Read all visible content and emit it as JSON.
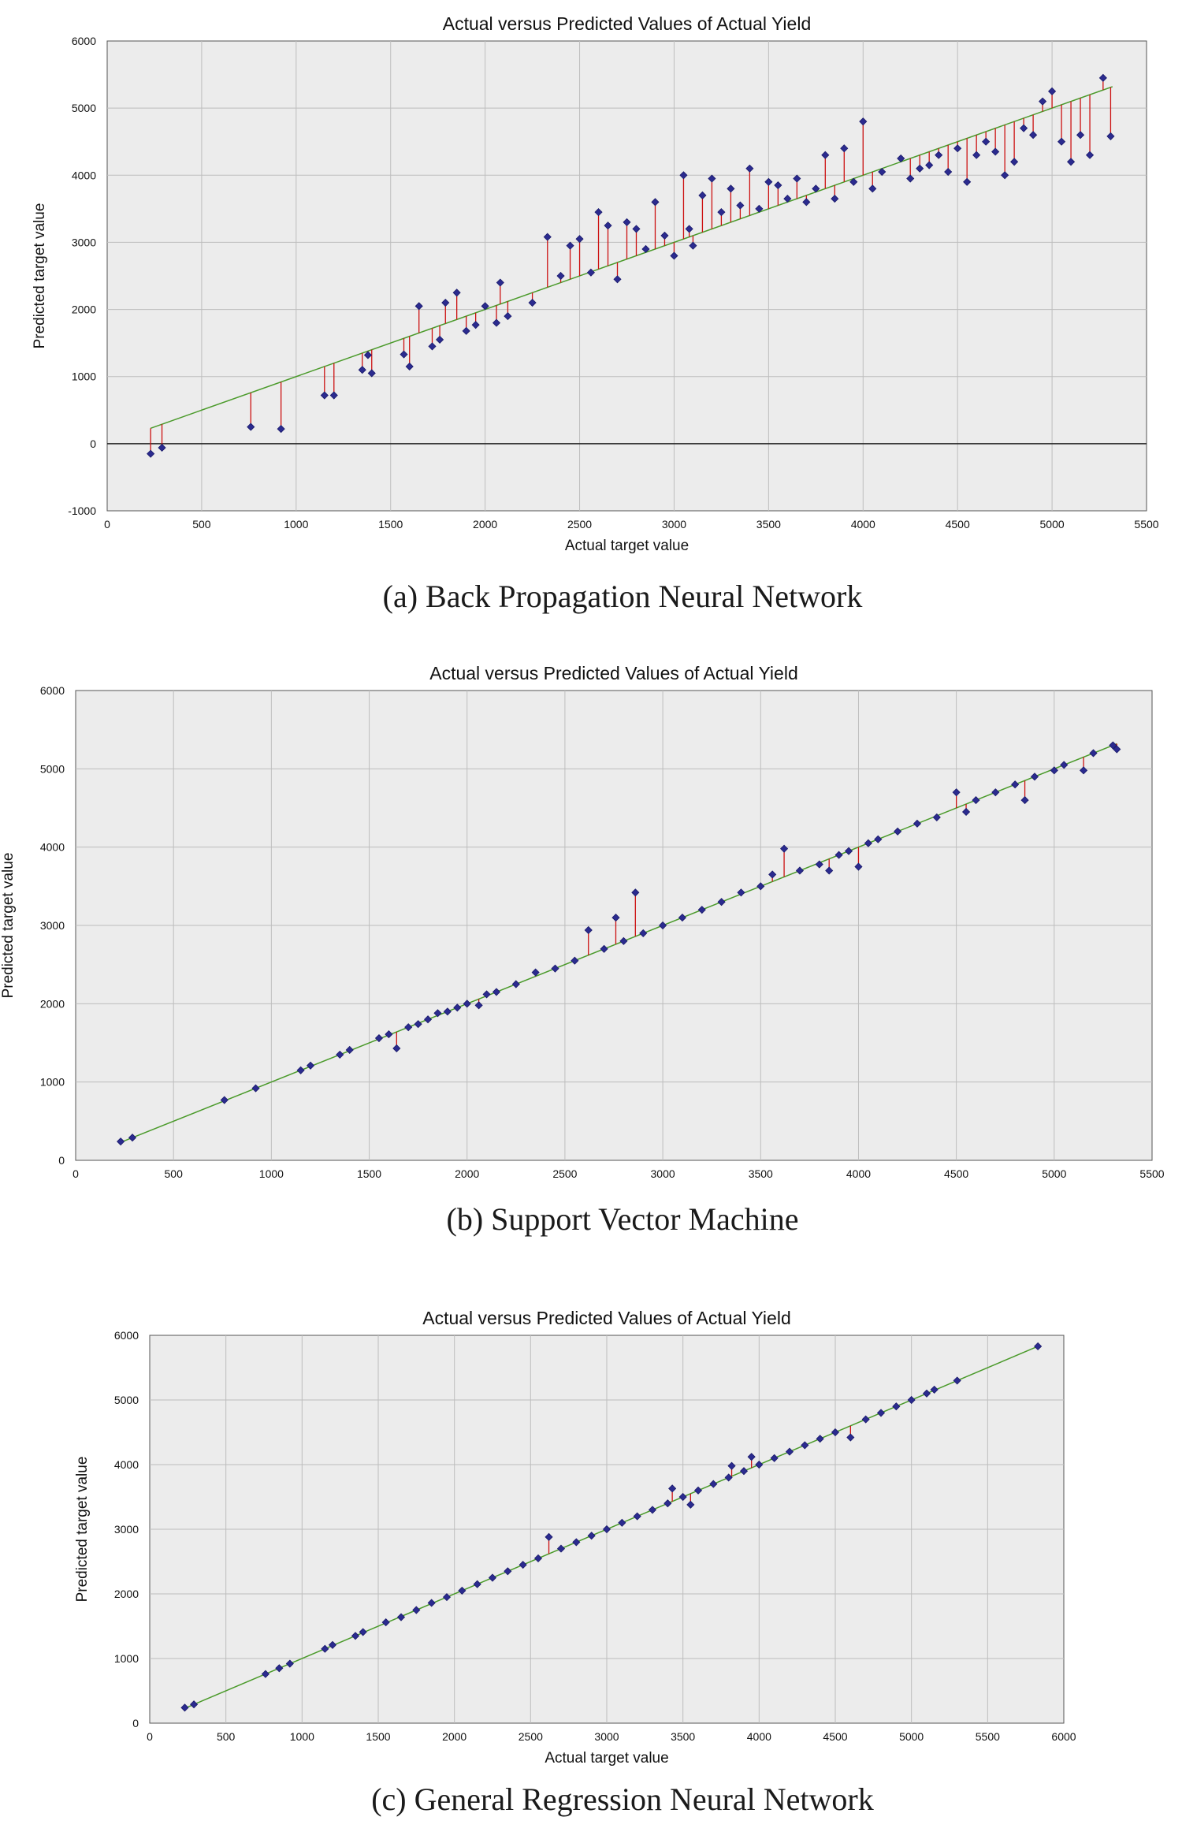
{
  "colors": {
    "plot_background": "#ececec",
    "grid": "#bdbdbd",
    "fit_line": "#4a9a2a",
    "residual": "#cc1111",
    "point": "#2b2b8f"
  },
  "chart_data": [
    {
      "type": "scatter",
      "title": "Actual versus Predicted Values of Actual Yield",
      "xlabel": "Actual target value",
      "ylabel": "Predicted target value",
      "caption": "(a) Back Propagation Neural Network",
      "xlim": [
        0,
        5500
      ],
      "ylim": [
        -1000,
        6000
      ],
      "xticks": [
        0,
        500,
        1000,
        1500,
        2000,
        2500,
        3000,
        3500,
        4000,
        4500,
        5000,
        5500
      ],
      "yticks": [
        -1000,
        0,
        1000,
        2000,
        3000,
        4000,
        5000,
        6000
      ],
      "grid": true,
      "fit_line": [
        [
          230,
          230
        ],
        [
          5320,
          5320
        ]
      ],
      "points": [
        [
          230,
          -150
        ],
        [
          290,
          -60
        ],
        [
          760,
          250
        ],
        [
          920,
          220
        ],
        [
          1150,
          720
        ],
        [
          1200,
          720
        ],
        [
          1350,
          1100
        ],
        [
          1400,
          1050
        ],
        [
          1380,
          1320
        ],
        [
          1570,
          1330
        ],
        [
          1600,
          1150
        ],
        [
          1650,
          2050
        ],
        [
          1720,
          1450
        ],
        [
          1760,
          1550
        ],
        [
          1790,
          2100
        ],
        [
          1850,
          2250
        ],
        [
          1900,
          1680
        ],
        [
          1950,
          1770
        ],
        [
          2000,
          2050
        ],
        [
          2060,
          1800
        ],
        [
          2080,
          2400
        ],
        [
          2120,
          1900
        ],
        [
          2250,
          2100
        ],
        [
          2330,
          3080
        ],
        [
          2400,
          2500
        ],
        [
          2450,
          2950
        ],
        [
          2500,
          3050
        ],
        [
          2560,
          2550
        ],
        [
          2600,
          3450
        ],
        [
          2650,
          3250
        ],
        [
          2700,
          2450
        ],
        [
          2750,
          3300
        ],
        [
          2800,
          3200
        ],
        [
          2850,
          2900
        ],
        [
          2900,
          3600
        ],
        [
          2950,
          3100
        ],
        [
          3000,
          2800
        ],
        [
          3050,
          4000
        ],
        [
          3080,
          3200
        ],
        [
          3100,
          2950
        ],
        [
          3150,
          3700
        ],
        [
          3200,
          3950
        ],
        [
          3250,
          3450
        ],
        [
          3300,
          3800
        ],
        [
          3350,
          3550
        ],
        [
          3400,
          4100
        ],
        [
          3450,
          3500
        ],
        [
          3500,
          3900
        ],
        [
          3550,
          3850
        ],
        [
          3600,
          3650
        ],
        [
          3650,
          3950
        ],
        [
          3700,
          3600
        ],
        [
          3750,
          3800
        ],
        [
          3800,
          4300
        ],
        [
          3850,
          3650
        ],
        [
          3900,
          4400
        ],
        [
          3950,
          3900
        ],
        [
          4000,
          4800
        ],
        [
          4050,
          3800
        ],
        [
          4100,
          4050
        ],
        [
          4200,
          4250
        ],
        [
          4250,
          3950
        ],
        [
          4300,
          4100
        ],
        [
          4350,
          4150
        ],
        [
          4400,
          4300
        ],
        [
          4450,
          4050
        ],
        [
          4500,
          4400
        ],
        [
          4550,
          3900
        ],
        [
          4600,
          4300
        ],
        [
          4650,
          4500
        ],
        [
          4700,
          4350
        ],
        [
          4750,
          4000
        ],
        [
          4800,
          4200
        ],
        [
          4850,
          4700
        ],
        [
          4900,
          4600
        ],
        [
          4950,
          5100
        ],
        [
          5000,
          5250
        ],
        [
          5050,
          4500
        ],
        [
          5100,
          4200
        ],
        [
          5150,
          4600
        ],
        [
          5200,
          4300
        ],
        [
          5270,
          5450
        ],
        [
          5310,
          4580
        ]
      ]
    },
    {
      "type": "scatter",
      "title": "Actual versus Predicted Values of Actual Yield",
      "xlabel": "",
      "ylabel": "Predicted target value",
      "caption": "(b) Support Vector Machine",
      "xlim": [
        0,
        5500
      ],
      "ylim": [
        0,
        6000
      ],
      "xticks": [
        0,
        500,
        1000,
        1500,
        2000,
        2500,
        3000,
        3500,
        4000,
        4500,
        5000,
        5500
      ],
      "yticks": [
        0,
        1000,
        2000,
        3000,
        4000,
        5000,
        6000
      ],
      "grid": true,
      "fit_line": [
        [
          230,
          230
        ],
        [
          5320,
          5320
        ]
      ],
      "points": [
        [
          230,
          240
        ],
        [
          290,
          290
        ],
        [
          760,
          770
        ],
        [
          920,
          920
        ],
        [
          1150,
          1150
        ],
        [
          1200,
          1210
        ],
        [
          1350,
          1350
        ],
        [
          1400,
          1410
        ],
        [
          1550,
          1560
        ],
        [
          1600,
          1610
        ],
        [
          1640,
          1430
        ],
        [
          1700,
          1700
        ],
        [
          1750,
          1740
        ],
        [
          1800,
          1800
        ],
        [
          1850,
          1880
        ],
        [
          1900,
          1900
        ],
        [
          1950,
          1950
        ],
        [
          2000,
          2000
        ],
        [
          2060,
          1980
        ],
        [
          2100,
          2120
        ],
        [
          2150,
          2150
        ],
        [
          2250,
          2250
        ],
        [
          2350,
          2400
        ],
        [
          2450,
          2450
        ],
        [
          2550,
          2550
        ],
        [
          2620,
          2940
        ],
        [
          2700,
          2700
        ],
        [
          2760,
          3100
        ],
        [
          2800,
          2800
        ],
        [
          2860,
          3420
        ],
        [
          2900,
          2900
        ],
        [
          3000,
          3000
        ],
        [
          3100,
          3100
        ],
        [
          3200,
          3200
        ],
        [
          3300,
          3300
        ],
        [
          3400,
          3420
        ],
        [
          3500,
          3500
        ],
        [
          3560,
          3650
        ],
        [
          3620,
          3980
        ],
        [
          3700,
          3700
        ],
        [
          3800,
          3780
        ],
        [
          3850,
          3700
        ],
        [
          3900,
          3900
        ],
        [
          3950,
          3950
        ],
        [
          4000,
          3750
        ],
        [
          4050,
          4050
        ],
        [
          4100,
          4100
        ],
        [
          4200,
          4200
        ],
        [
          4300,
          4300
        ],
        [
          4400,
          4380
        ],
        [
          4500,
          4700
        ],
        [
          4550,
          4450
        ],
        [
          4600,
          4600
        ],
        [
          4700,
          4700
        ],
        [
          4800,
          4800
        ],
        [
          4850,
          4600
        ],
        [
          4900,
          4900
        ],
        [
          5000,
          4980
        ],
        [
          5050,
          5050
        ],
        [
          5150,
          4980
        ],
        [
          5200,
          5200
        ],
        [
          5300,
          5300
        ],
        [
          5320,
          5250
        ]
      ]
    },
    {
      "type": "scatter",
      "title": "Actual versus Predicted Values of Actual Yield",
      "xlabel": "Actual target value",
      "ylabel": "Predicted target value",
      "caption": "(c) General Regression Neural Network",
      "xlim": [
        0,
        6000
      ],
      "ylim": [
        0,
        6000
      ],
      "xticks": [
        0,
        500,
        1000,
        1500,
        2000,
        2500,
        3000,
        3500,
        4000,
        4500,
        5000,
        5500,
        6000
      ],
      "yticks": [
        0,
        1000,
        2000,
        3000,
        4000,
        5000,
        6000
      ],
      "grid": true,
      "fit_line": [
        [
          230,
          230
        ],
        [
          5830,
          5830
        ]
      ],
      "points": [
        [
          230,
          240
        ],
        [
          290,
          290
        ],
        [
          760,
          760
        ],
        [
          850,
          850
        ],
        [
          920,
          920
        ],
        [
          1150,
          1150
        ],
        [
          1200,
          1210
        ],
        [
          1350,
          1350
        ],
        [
          1400,
          1410
        ],
        [
          1550,
          1560
        ],
        [
          1650,
          1640
        ],
        [
          1750,
          1750
        ],
        [
          1850,
          1860
        ],
        [
          1950,
          1950
        ],
        [
          2050,
          2050
        ],
        [
          2150,
          2150
        ],
        [
          2250,
          2250
        ],
        [
          2350,
          2350
        ],
        [
          2450,
          2450
        ],
        [
          2550,
          2550
        ],
        [
          2620,
          2880
        ],
        [
          2700,
          2700
        ],
        [
          2800,
          2800
        ],
        [
          2900,
          2900
        ],
        [
          3000,
          3000
        ],
        [
          3100,
          3100
        ],
        [
          3200,
          3200
        ],
        [
          3300,
          3300
        ],
        [
          3400,
          3400
        ],
        [
          3430,
          3630
        ],
        [
          3500,
          3500
        ],
        [
          3550,
          3380
        ],
        [
          3600,
          3600
        ],
        [
          3700,
          3700
        ],
        [
          3800,
          3800
        ],
        [
          3820,
          3980
        ],
        [
          3900,
          3900
        ],
        [
          3950,
          4120
        ],
        [
          4000,
          4000
        ],
        [
          4100,
          4100
        ],
        [
          4200,
          4200
        ],
        [
          4300,
          4300
        ],
        [
          4400,
          4400
        ],
        [
          4500,
          4500
        ],
        [
          4600,
          4420
        ],
        [
          4700,
          4700
        ],
        [
          4800,
          4800
        ],
        [
          4900,
          4900
        ],
        [
          5000,
          5000
        ],
        [
          5100,
          5100
        ],
        [
          5150,
          5160
        ],
        [
          5300,
          5300
        ],
        [
          5830,
          5830
        ]
      ]
    }
  ]
}
